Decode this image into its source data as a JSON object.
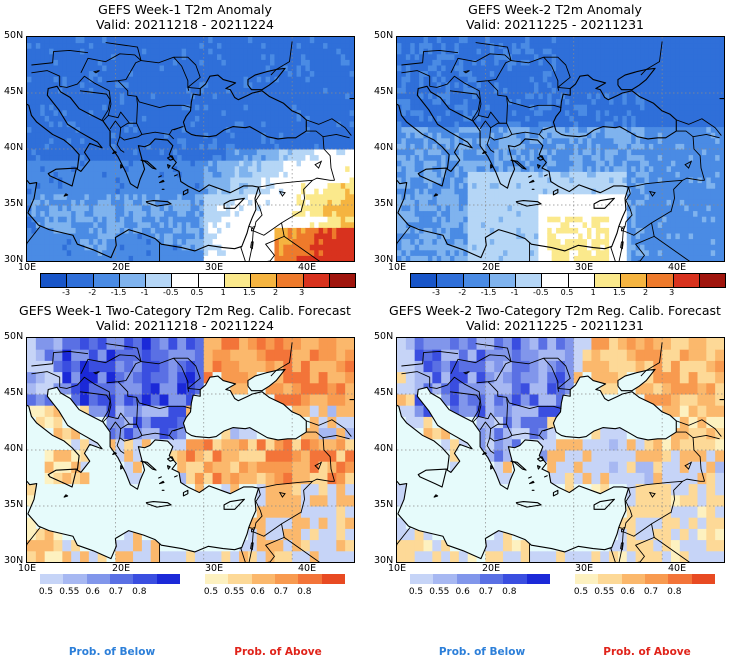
{
  "colors": {
    "anom": [
      "#1855c8",
      "#2f6fd9",
      "#4a8be4",
      "#7fb3ee",
      "#b5d6f6",
      "#ffffff",
      "#ffffff",
      "#fbe98c",
      "#f5b440",
      "#ee7a2b",
      "#d8321e",
      "#a0150d"
    ],
    "below": [
      "#c6d4f7",
      "#a7b8f2",
      "#8196eb",
      "#5a70e4",
      "#3a4ee0",
      "#1b29d8"
    ],
    "above": [
      "#fdf1c0",
      "#fdd997",
      "#fbb86c",
      "#f89a4f",
      "#f37439",
      "#e84a22"
    ],
    "sea": "#e6fbfb",
    "below_label": "#2c7fd9",
    "above_label": "#e0231a"
  },
  "panels": [
    {
      "id": "anom-w1",
      "title": "GEFS Week-1 T2m Anomaly",
      "valid": "Valid: 20211218 - 20211224",
      "xticks": [
        "10E",
        "20E",
        "30E",
        "40E"
      ],
      "yticks": [
        "50N",
        "45N",
        "40N",
        "35N",
        "30N"
      ],
      "type": "anomaly"
    },
    {
      "id": "anom-w2",
      "title": "GEFS Week-2 T2m Anomaly",
      "valid": "Valid: 20211225 - 20211231",
      "xticks": [
        "10E",
        "20E",
        "30E",
        "40E"
      ],
      "yticks": [
        "50N",
        "45N",
        "40N",
        "35N",
        "30N"
      ],
      "type": "anomaly"
    },
    {
      "id": "prob-w1",
      "title": "GEFS Week-1 Two-Category T2m Reg. Calib. Forecast",
      "valid": "Valid: 20211218 - 20211224",
      "xticks": [
        "10E",
        "20E",
        "30E",
        "40E"
      ],
      "yticks": [
        "50N",
        "45N",
        "40N",
        "35N",
        "30N"
      ],
      "type": "prob"
    },
    {
      "id": "prob-w2",
      "title": "GEFS Week-2 Two-Category T2m Reg. Calib. Forecast",
      "valid": "Valid: 20211225 - 20211231",
      "xticks": [
        "10E",
        "20E",
        "30E",
        "40E"
      ],
      "yticks": [
        "50N",
        "45N",
        "40N",
        "35N",
        "30N"
      ],
      "type": "prob"
    }
  ],
  "anom_colorbar_labels": [
    "-3",
    "-2",
    "-1.5",
    "-1",
    "-0.5",
    "0.5",
    "1",
    "1.5",
    "2",
    "3"
  ],
  "prob_colorbar_labels": [
    "0.5",
    "0.55",
    "0.6",
    "0.7",
    "0.8"
  ],
  "footer": {
    "below": "Prob. of Below",
    "above": "Prob. of Above"
  }
}
